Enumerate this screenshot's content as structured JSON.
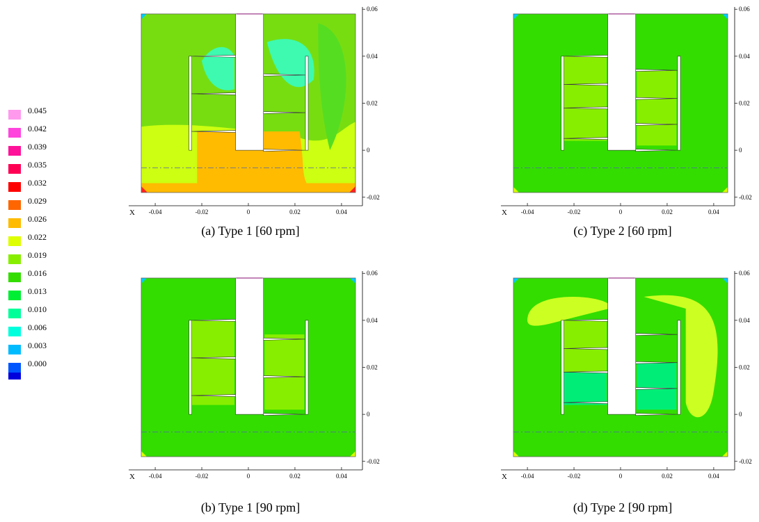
{
  "legend": {
    "items": [
      {
        "value": "0.045",
        "color": "#ff99ee"
      },
      {
        "value": "0.042",
        "color": "#ff44dd"
      },
      {
        "value": "0.039",
        "color": "#ff1199"
      },
      {
        "value": "0.035",
        "color": "#ff0055"
      },
      {
        "value": "0.032",
        "color": "#ff0000"
      },
      {
        "value": "0.029",
        "color": "#ff6600"
      },
      {
        "value": "0.026",
        "color": "#ffbb00"
      },
      {
        "value": "0.022",
        "color": "#ddff00"
      },
      {
        "value": "0.019",
        "color": "#88ee00"
      },
      {
        "value": "0.016",
        "color": "#33dd00"
      },
      {
        "value": "0.013",
        "color": "#00ee33"
      },
      {
        "value": "0.010",
        "color": "#00ff99"
      },
      {
        "value": "0.006",
        "color": "#00ffdd"
      },
      {
        "value": "0.003",
        "color": "#00bbff"
      },
      {
        "value": "0.000",
        "color": "#0055ff"
      }
    ]
  },
  "chart_data": [
    {
      "type": "heatmap",
      "caption": "(a) Type 1 [60 rpm]",
      "x_axis_name": "X",
      "x_ticks": [
        "-0.04",
        "-0.02",
        "0",
        "0.02",
        "0.04"
      ],
      "y_ticks": [
        "0.06",
        "0.04",
        "0.02",
        "0",
        "-0.02"
      ],
      "dominant_levels": [
        "0.013",
        "0.016",
        "0.019",
        "0.022",
        "0.026",
        "0.029"
      ],
      "colors": {
        "base": "#77dd11",
        "upper_mid": "#55dd22",
        "cyan": "#33ffcc",
        "lower": "#ccff11",
        "bottom": "#ffbb00",
        "corner": "#ff2222"
      }
    },
    {
      "type": "heatmap",
      "caption": "(c) Type 2 [60 rpm]",
      "x_axis_name": "X",
      "x_ticks": [
        "-0.04",
        "-0.02",
        "0",
        "0.02",
        "0.04"
      ],
      "y_ticks": [
        "0.06",
        "0.04",
        "0.02",
        "0",
        "-0.02"
      ],
      "dominant_levels": [
        "0.013",
        "0.016",
        "0.019"
      ],
      "colors": {
        "base": "#33dd00",
        "blade": "#88ee00",
        "corner": "#00ccff"
      }
    },
    {
      "type": "heatmap",
      "caption": "(b) Type 1 [90 rpm]",
      "x_axis_name": "X",
      "x_ticks": [
        "-0.04",
        "-0.02",
        "0",
        "0.02",
        "0.04"
      ],
      "y_ticks": [
        "0.06",
        "0.04",
        "0.02",
        "0",
        "-0.02"
      ],
      "dominant_levels": [
        "0.016",
        "0.019"
      ],
      "colors": {
        "base": "#33dd00",
        "blade": "#88ee00",
        "corner": "#00ccff"
      }
    },
    {
      "type": "heatmap",
      "caption": "(d) Type 2 [90 rpm]",
      "x_axis_name": "X",
      "x_ticks": [
        "-0.04",
        "-0.02",
        "0",
        "0.02",
        "0.04"
      ],
      "y_ticks": [
        "0.06",
        "0.04",
        "0.02",
        "0",
        "-0.02"
      ],
      "dominant_levels": [
        "0.013",
        "0.016",
        "0.019",
        "0.022"
      ],
      "colors": {
        "base": "#33dd00",
        "lobe": "#ccff22",
        "blade": "#88ee00",
        "low": "#00ee77",
        "corner": "#00ccff"
      }
    }
  ]
}
